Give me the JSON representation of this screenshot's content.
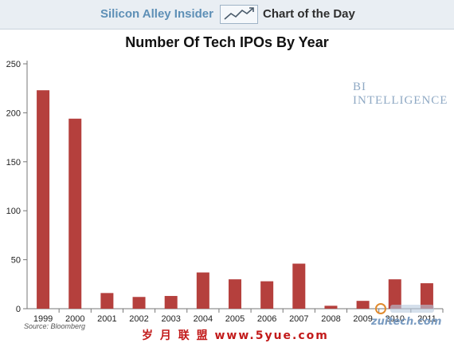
{
  "header": {
    "brand": "Silicon Alley Insider",
    "subtitle": "Chart of the Day"
  },
  "watermark": "BI INTELLIGENCE",
  "source": "Source: Bloomberg",
  "footer": {
    "cn_watermark": "岁 月 联 盟   www.5yue.com",
    "site_watermark": "zuitech.com"
  },
  "colors": {
    "bar": "#b5403d",
    "header_bg": "#e9eef3",
    "brand": "#5d8fb6"
  },
  "chart_data": {
    "type": "bar",
    "title": "Number Of Tech IPOs By Year",
    "xlabel": "",
    "ylabel": "",
    "categories": [
      "1999",
      "2000",
      "2001",
      "2002",
      "2003",
      "2004",
      "2005",
      "2006",
      "2007",
      "2008",
      "2009",
      "2010",
      "2011"
    ],
    "values": [
      223,
      194,
      16,
      12,
      13,
      37,
      30,
      28,
      46,
      3,
      8,
      30,
      26
    ],
    "ylim": [
      0,
      250
    ],
    "yticks": [
      0,
      50,
      100,
      150,
      200,
      250
    ],
    "grid": false,
    "legend": "none"
  }
}
